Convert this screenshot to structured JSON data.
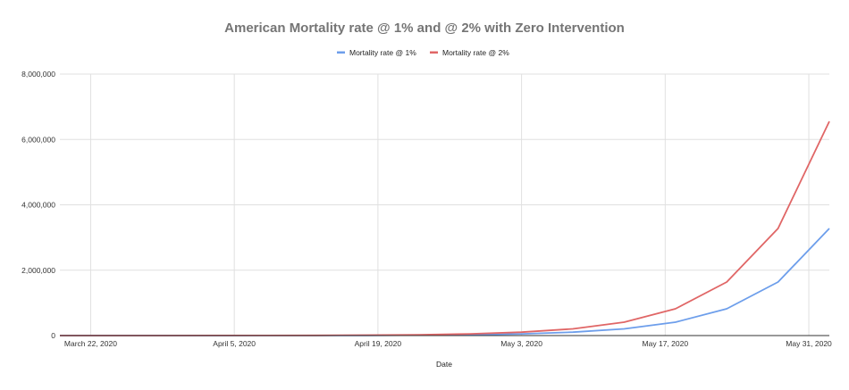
{
  "chart_data": {
    "type": "line",
    "title": "American Mortality rate @ 1% and @ 2% with Zero Intervention",
    "xlabel": "Date",
    "ylabel": "",
    "x": [
      "2020-03-19",
      "2020-03-24",
      "2020-03-29",
      "2020-04-03",
      "2020-04-08",
      "2020-04-13",
      "2020-04-18",
      "2020-04-23",
      "2020-04-28",
      "2020-05-03",
      "2020-05-08",
      "2020-05-13",
      "2020-05-18",
      "2020-05-23",
      "2020-05-28",
      "2020-06-02"
    ],
    "xlim": [
      "2020-03-19",
      "2020-06-02"
    ],
    "x_ticks": [
      {
        "date": "2020-03-22",
        "label": "March 22, 2020"
      },
      {
        "date": "2020-04-05",
        "label": "April 5, 2020"
      },
      {
        "date": "2020-04-19",
        "label": "April 19, 2020"
      },
      {
        "date": "2020-05-03",
        "label": "May 3, 2020"
      },
      {
        "date": "2020-05-17",
        "label": "May 17, 2020"
      },
      {
        "date": "2020-05-31",
        "label": "May 31, 2020"
      }
    ],
    "ylim": [
      0,
      8000000
    ],
    "y_ticks": [
      {
        "value": 0,
        "label": "0"
      },
      {
        "value": 2000000,
        "label": "2,000,000"
      },
      {
        "value": 4000000,
        "label": "4,000,000"
      },
      {
        "value": 6000000,
        "label": "6,000,000"
      },
      {
        "value": 8000000,
        "label": "8,000,000"
      }
    ],
    "grid": true,
    "legend_position": "top-center",
    "series": [
      {
        "name": "Mortality rate @ 1%",
        "color": "#6d9eeb",
        "values": [
          100,
          200,
          400,
          800,
          1600,
          3200,
          6400,
          12800,
          25600,
          51200,
          102400,
          204800,
          409600,
          819200,
          1638400,
          3276800
        ]
      },
      {
        "name": "Mortality rate @ 2%",
        "color": "#e06666",
        "values": [
          200,
          400,
          800,
          1600,
          3200,
          6400,
          12800,
          25600,
          51200,
          102400,
          204800,
          409600,
          819200,
          1638400,
          3276800,
          6553600
        ]
      }
    ]
  }
}
